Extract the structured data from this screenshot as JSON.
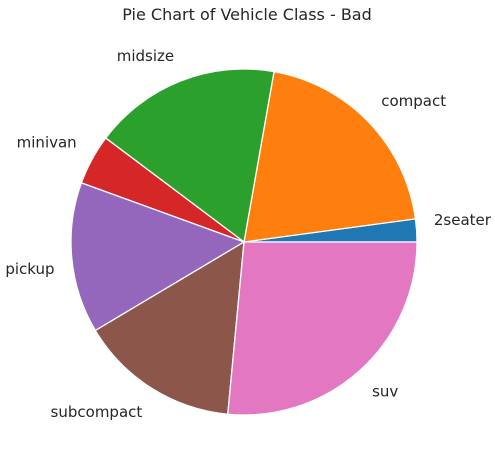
{
  "chart_data": {
    "type": "pie",
    "title": "Pie Chart of Vehicle Class - Bad",
    "categories": [
      "2seater",
      "compact",
      "midsize",
      "minivan",
      "pickup",
      "subcompact",
      "suv"
    ],
    "values": [
      5,
      47,
      41,
      11,
      33,
      35,
      62
    ],
    "colors": [
      "#1f77b4",
      "#ff7f0e",
      "#2ca02c",
      "#d62728",
      "#9467bd",
      "#8c564b",
      "#e377c2"
    ],
    "start_angle": 0,
    "direction": "counterclockwise"
  }
}
